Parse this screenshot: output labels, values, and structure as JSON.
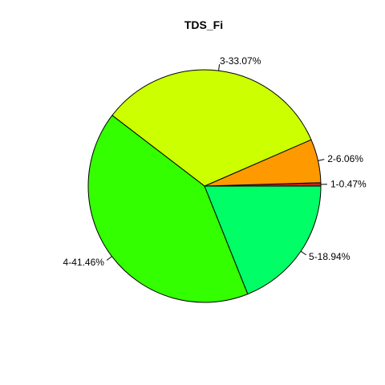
{
  "chart_data": {
    "type": "pie",
    "title": "TDS_Fi",
    "slices": [
      {
        "label": "1-0.47%",
        "value": 0.47,
        "color": "#cc2222"
      },
      {
        "label": "2-6.06%",
        "value": 6.06,
        "color": "#ff9900"
      },
      {
        "label": "3-33.07%",
        "value": 33.07,
        "color": "#ccff00"
      },
      {
        "label": "4-41.46%",
        "value": 41.46,
        "color": "#33ff00"
      },
      {
        "label": "5-18.94%",
        "value": 18.94,
        "color": "#00ff66"
      }
    ],
    "start_angle": "3 o'clock",
    "direction": "counterclockwise",
    "border_color": "#000000"
  }
}
